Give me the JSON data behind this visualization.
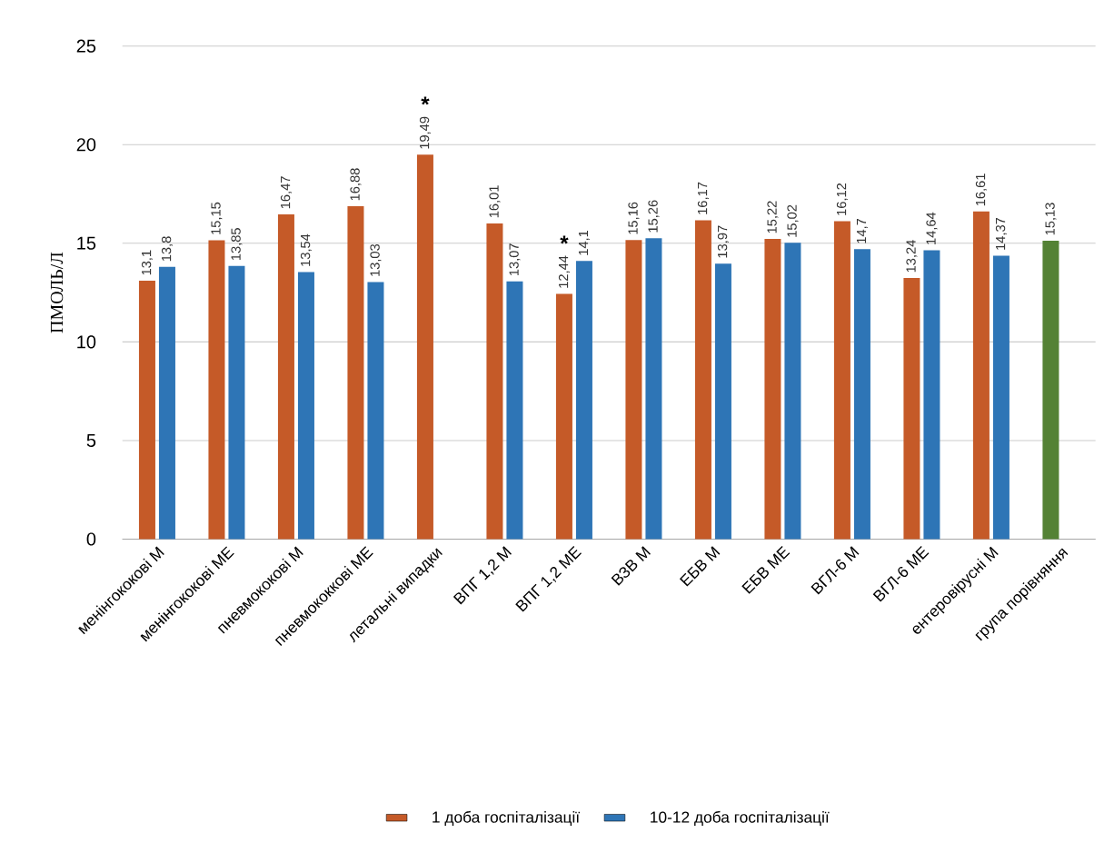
{
  "chart_data": {
    "type": "bar",
    "ylabel": "ПМОЛЬ/Л",
    "categories": [
      "менінгококові М",
      "менінгококові МЕ",
      "пневмококові М",
      "пневмококкові МЕ",
      "летальні випадки",
      "ВПГ 1,2 М",
      "ВПГ 1,2 МЕ",
      "ВЗВ М",
      "ЕБВ М",
      "ЕБВ МЕ",
      "ВГЛ-6 М",
      "ВГЛ-6 МЕ",
      "ентеровірусні М",
      "група порівняння"
    ],
    "series": [
      {
        "name": "1 доба госпіталізації",
        "color": "#c55a28",
        "colors": [
          "#c55a28",
          "#c55a28",
          "#c55a28",
          "#c55a28",
          "#c55a28",
          "#c55a28",
          "#c55a28",
          "#c55a28",
          "#c55a28",
          "#c55a28",
          "#c55a28",
          "#c55a28",
          "#c55a28",
          "#548235"
        ],
        "values": [
          13.1,
          15.15,
          16.47,
          16.88,
          19.49,
          16.01,
          12.44,
          15.16,
          16.17,
          15.22,
          16.12,
          13.24,
          16.61,
          15.13
        ],
        "value_labels": [
          "13,1",
          "15,15",
          "16,47",
          "16,88",
          "19,49",
          "16,01",
          "12,44",
          "15,16",
          "16,17",
          "15,22",
          "16,12",
          "13,24",
          "16,61",
          "15,13"
        ]
      },
      {
        "name": "10-12 доба госпіталізації",
        "color": "#2e75b6",
        "values": [
          13.8,
          13.85,
          13.54,
          13.03,
          null,
          13.07,
          14.1,
          15.26,
          13.97,
          15.02,
          14.7,
          14.64,
          14.37,
          null
        ],
        "value_labels": [
          "13,8",
          "13,85",
          "13,54",
          "13,03",
          null,
          "13,07",
          "14,1",
          "15,26",
          "13,97",
          "15,02",
          "14,7",
          "14,64",
          "14,37",
          null
        ]
      }
    ],
    "ylim": [
      0,
      25
    ],
    "yticks": [
      0,
      5,
      10,
      15,
      20,
      25
    ],
    "grid": "y",
    "legend": "bottom",
    "annotations": [
      {
        "text": "*",
        "x": "летальні випадки",
        "y": 19.49
      },
      {
        "text": "*",
        "x": "ВПГ 1,2 МЕ",
        "y": 12.44
      }
    ]
  }
}
